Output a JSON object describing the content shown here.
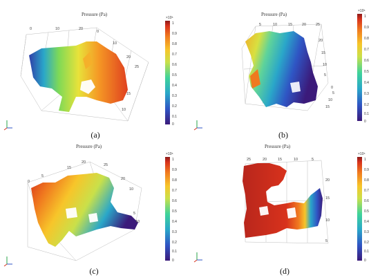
{
  "colors": {
    "colormap": [
      "#3b1a7a",
      "#2f55c4",
      "#2aa7c9",
      "#3fd39a",
      "#c9e04a",
      "#f7c52a",
      "#f07a1f",
      "#d8321c",
      "#8b1a1a"
    ]
  },
  "panels": [
    {
      "caption": "(a)",
      "title": "Pressure (Pa)",
      "cb_exponent": "×10⁵",
      "cb_ticks": [
        "1",
        "0.9",
        "0.8",
        "0.7",
        "0.6",
        "0.5",
        "0.4",
        "0.3",
        "0.2",
        "0.1",
        "0"
      ],
      "axis_ticks": [
        "0",
        "10",
        "20",
        "0",
        "10",
        "20",
        "25",
        "15",
        "10"
      ]
    },
    {
      "caption": "(b)",
      "title": "Pressure (Pa)",
      "cb_exponent": "×10⁵",
      "cb_ticks": [
        "1",
        "0.9",
        "0.8",
        "0.7",
        "0.6",
        "0.5",
        "0.4",
        "0.3",
        "0.2",
        "0.1",
        "0"
      ],
      "axis_ticks": [
        "5",
        "10",
        "15",
        "20",
        "25",
        "20",
        "15",
        "10",
        "5",
        "0",
        "5",
        "10",
        "15"
      ]
    },
    {
      "caption": "(c)",
      "title": "Pressure (Pa)",
      "cb_exponent": "×10⁵",
      "cb_ticks": [
        "1",
        "0.9",
        "0.8",
        "0.7",
        "0.6",
        "0.5",
        "0.4",
        "0.3",
        "0.2",
        "0.1",
        "0"
      ],
      "axis_ticks": [
        "0",
        "5",
        "15",
        "20",
        "25",
        "20",
        "10",
        "5",
        "10"
      ]
    },
    {
      "caption": "(d)",
      "title": "Pressure (Pa)",
      "cb_exponent": "×10⁵",
      "cb_ticks": [
        "1",
        "0.9",
        "0.8",
        "0.7",
        "0.6",
        "0.5",
        "0.4",
        "0.3",
        "0.2",
        "0.1",
        "0"
      ],
      "axis_ticks": [
        "25",
        "20",
        "15",
        "10",
        "5",
        "20",
        "15",
        "10",
        "5"
      ]
    }
  ]
}
